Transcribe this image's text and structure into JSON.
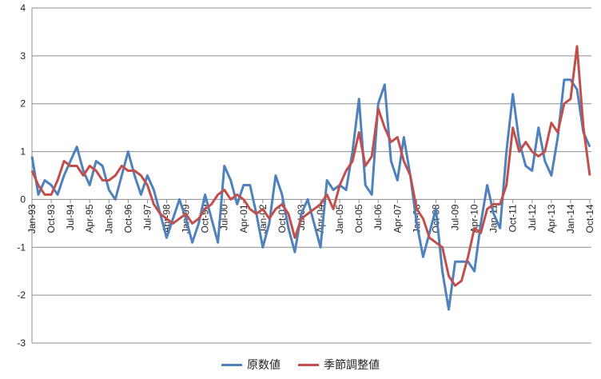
{
  "chart_data": {
    "type": "line",
    "title": "",
    "xlabel": "",
    "ylabel": "",
    "ylim": [
      -3,
      4
    ],
    "yticks": [
      "-3",
      "-2",
      "-1",
      "0",
      "1",
      "2",
      "3",
      "4"
    ],
    "grid": true,
    "legend_position": "bottom",
    "x_start": "Jan-93",
    "x_step": "quarterly",
    "xtick_labels": [
      "Jan-93",
      "Oct-93",
      "Jul-94",
      "Apr-95",
      "Jan-96",
      "Oct-96",
      "Jul-97",
      "Apr-98",
      "Jan-99",
      "Oct-99",
      "Jul-00",
      "Apr-01",
      "Jan-02",
      "Oct-02",
      "Jul-03",
      "Apr-04",
      "Jan-05",
      "Oct-05",
      "Jul-06",
      "Apr-07",
      "Jan-08",
      "Oct-08",
      "Jul-09",
      "Apr-10",
      "Jan-11",
      "Oct-11",
      "Jul-12",
      "Apr-13",
      "Jan-14",
      "Oct-14"
    ],
    "series": [
      {
        "name": "原数値",
        "color": "#4F81BD",
        "values": [
          0.9,
          0.1,
          0.4,
          0.3,
          0.1,
          0.5,
          0.8,
          1.1,
          0.6,
          0.3,
          0.8,
          0.7,
          0.2,
          0.0,
          0.5,
          1.0,
          0.5,
          0.1,
          0.5,
          0.2,
          -0.3,
          -0.8,
          -0.4,
          0.0,
          -0.4,
          -0.9,
          -0.5,
          0.1,
          -0.4,
          -0.9,
          0.7,
          0.4,
          -0.1,
          0.3,
          0.3,
          -0.3,
          -1.0,
          -0.5,
          0.5,
          0.1,
          -0.6,
          -1.1,
          -0.3,
          0.0,
          -0.5,
          -1.0,
          0.4,
          0.2,
          0.3,
          0.2,
          1.0,
          2.1,
          0.3,
          0.1,
          2.0,
          2.4,
          0.8,
          0.4,
          1.3,
          0.5,
          -0.5,
          -1.2,
          -0.7,
          -0.2,
          -1.5,
          -2.3,
          -1.3,
          -1.3,
          -1.3,
          -1.5,
          -0.5,
          0.3,
          -0.3,
          -0.6,
          1.0,
          2.2,
          1.2,
          0.7,
          0.6,
          1.5,
          0.8,
          0.5,
          1.3,
          2.5,
          2.5,
          2.3,
          1.4,
          1.1
        ]
      },
      {
        "name": "季節調整値",
        "color": "#C0504D",
        "values": [
          0.6,
          0.3,
          0.1,
          0.1,
          0.4,
          0.8,
          0.7,
          0.7,
          0.5,
          0.7,
          0.6,
          0.4,
          0.4,
          0.5,
          0.7,
          0.6,
          0.6,
          0.5,
          0.3,
          -0.1,
          -0.3,
          -0.4,
          -0.5,
          -0.4,
          -0.3,
          -0.5,
          -0.4,
          -0.2,
          -0.1,
          0.1,
          0.2,
          0.0,
          0.1,
          0.0,
          -0.2,
          -0.3,
          -0.2,
          -0.4,
          -0.2,
          -0.1,
          -0.3,
          -0.8,
          -0.4,
          -0.3,
          -0.2,
          -0.1,
          0.1,
          -0.2,
          0.3,
          0.6,
          0.8,
          1.4,
          0.7,
          0.9,
          1.9,
          1.5,
          1.2,
          1.3,
          0.8,
          0.5,
          -0.2,
          -0.4,
          -0.8,
          -0.9,
          -1.0,
          -1.6,
          -1.8,
          -1.7,
          -1.2,
          -0.6,
          -0.7,
          -0.2,
          -0.1,
          -0.1,
          0.3,
          1.5,
          1.0,
          1.2,
          1.0,
          0.9,
          1.0,
          1.6,
          1.4,
          2.0,
          2.1,
          3.2,
          1.5,
          0.5
        ]
      }
    ]
  }
}
